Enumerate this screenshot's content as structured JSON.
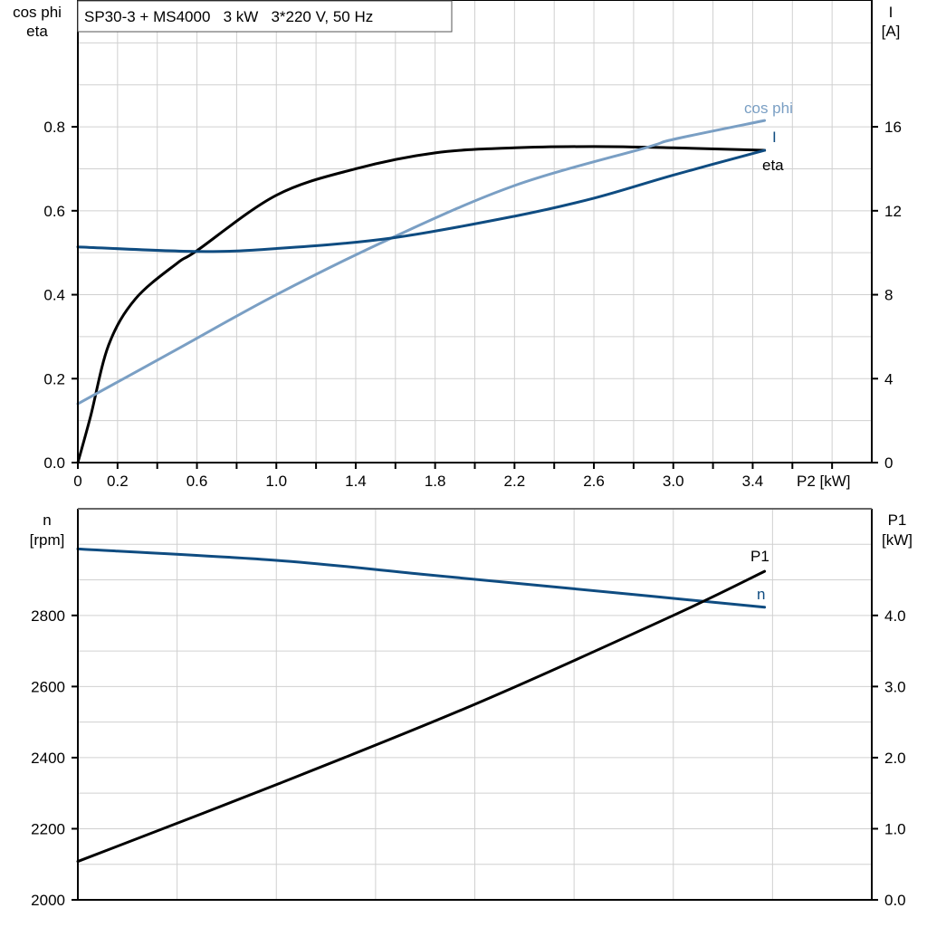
{
  "chart_data": [
    {
      "type": "line",
      "title": "SP30-3 + MS4000   3 kW   3*220 V, 50 Hz",
      "xlabel": "P2 [kW]",
      "ylabel_left": [
        "cos phi",
        "eta"
      ],
      "ylabel_right": [
        "I",
        "[A]"
      ],
      "xlim": [
        0,
        4.0
      ],
      "ylim_left": [
        0,
        1.1
      ],
      "ylim_right": [
        0,
        22
      ],
      "grid": true,
      "x_ticks": [
        "0",
        "0.2",
        "0.6",
        "1.0",
        "1.4",
        "1.8",
        "2.2",
        "2.6",
        "3.0",
        "3.4"
      ],
      "x_tick_values": [
        0,
        0.2,
        0.6,
        1.0,
        1.4,
        1.8,
        2.2,
        2.6,
        3.0,
        3.4
      ],
      "y_left_ticks": [
        "0.0",
        "0.2",
        "0.4",
        "0.6",
        "0.8"
      ],
      "y_right_ticks": [
        "0",
        "4",
        "8",
        "12",
        "16"
      ],
      "series": [
        {
          "name": "eta",
          "axis": "left",
          "color": "#000000",
          "x": [
            0,
            0.064,
            0.155,
            0.29,
            0.5,
            0.6,
            1.0,
            1.4,
            1.8,
            2.2,
            2.6,
            3.0,
            3.46
          ],
          "y": [
            0,
            0.11,
            0.28,
            0.39,
            0.475,
            0.505,
            0.637,
            0.7,
            0.738,
            0.75,
            0.753,
            0.75,
            0.744
          ]
        },
        {
          "name": "cos phi",
          "axis": "left",
          "color": "#7a9fc4",
          "x": [
            0,
            0.5,
            1.0,
            1.58,
            2.2,
            2.86,
            3.0,
            3.46
          ],
          "y": [
            0.14,
            0.27,
            0.4,
            0.535,
            0.66,
            0.75,
            0.77,
            0.815
          ]
        },
        {
          "name": "I",
          "axis": "right",
          "color": "#0f4c81",
          "x": [
            0,
            0.6,
            1.0,
            1.58,
            2.2,
            2.6,
            3.0,
            3.46
          ],
          "y": [
            10.28,
            10.06,
            10.2,
            10.7,
            11.74,
            12.6,
            13.7,
            14.88
          ]
        }
      ]
    },
    {
      "type": "line",
      "ylabel_left": [
        "n",
        "[rpm]"
      ],
      "ylabel_right": [
        "P1",
        "[kW]"
      ],
      "xlim": [
        0,
        4.0
      ],
      "ylim_left": [
        2000,
        3100
      ],
      "ylim_right": [
        0,
        5.5
      ],
      "grid": true,
      "y_left_ticks": [
        "2000",
        "2200",
        "2400",
        "2600",
        "2800"
      ],
      "y_right_ticks": [
        "0.0",
        "1.0",
        "2.0",
        "3.0",
        "4.0"
      ],
      "series": [
        {
          "name": "n",
          "axis": "left",
          "color": "#0f4c81",
          "x": [
            0,
            1.0,
            1.73,
            2.5,
            3.46
          ],
          "y": [
            2987,
            2955,
            2916,
            2875,
            2823
          ]
        },
        {
          "name": "P1",
          "axis": "right",
          "color": "#000000",
          "x": [
            0,
            1.0,
            2.0,
            3.0,
            3.46
          ],
          "y": [
            0.54,
            1.62,
            2.75,
            4.0,
            4.62
          ]
        }
      ]
    }
  ]
}
